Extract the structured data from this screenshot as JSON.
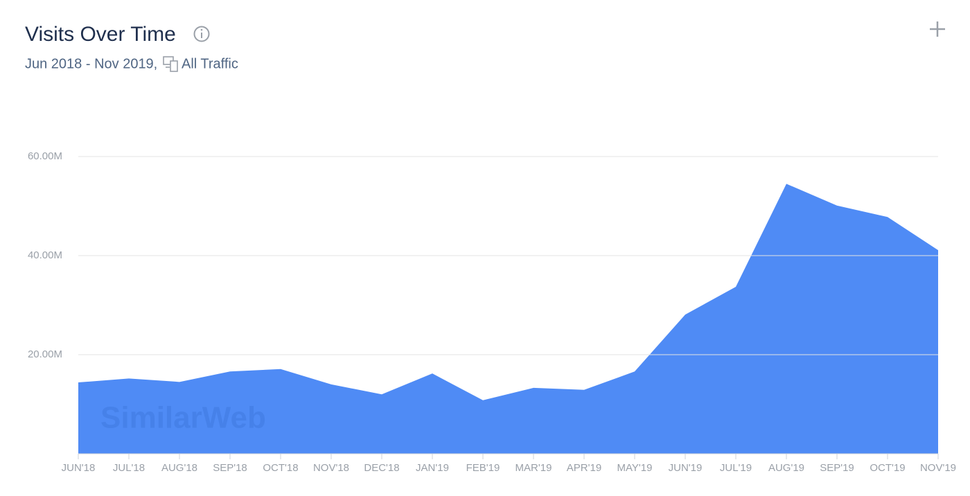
{
  "chart_data": {
    "type": "area",
    "title": "Visits Over Time",
    "subtitle": "Jun 2018 - Nov 2019,",
    "traffic_label": "All Traffic",
    "watermark": "SimilarWeb",
    "categories": [
      "JUN'18",
      "JUL'18",
      "AUG'18",
      "SEP'18",
      "OCT'18",
      "NOV'18",
      "DEC'18",
      "JAN'19",
      "FEB'19",
      "MAR'19",
      "APR'19",
      "MAY'19",
      "JUN'19",
      "JUL'19",
      "AUG'19",
      "SEP'19",
      "OCT'19",
      "NOV'19"
    ],
    "values": [
      14400000,
      15200000,
      14500000,
      16600000,
      17100000,
      14000000,
      12000000,
      16200000,
      10800000,
      13300000,
      12900000,
      16600000,
      28100000,
      33700000,
      54500000,
      50100000,
      47800000,
      41100000
    ],
    "color": "#4f8bf5",
    "ylim": [
      0,
      60000000
    ],
    "yticks": [
      {
        "value": 20000000,
        "label": "20.00M"
      },
      {
        "value": 40000000,
        "label": "40.00M"
      },
      {
        "value": 60000000,
        "label": "60.00M"
      }
    ],
    "grid": true
  }
}
